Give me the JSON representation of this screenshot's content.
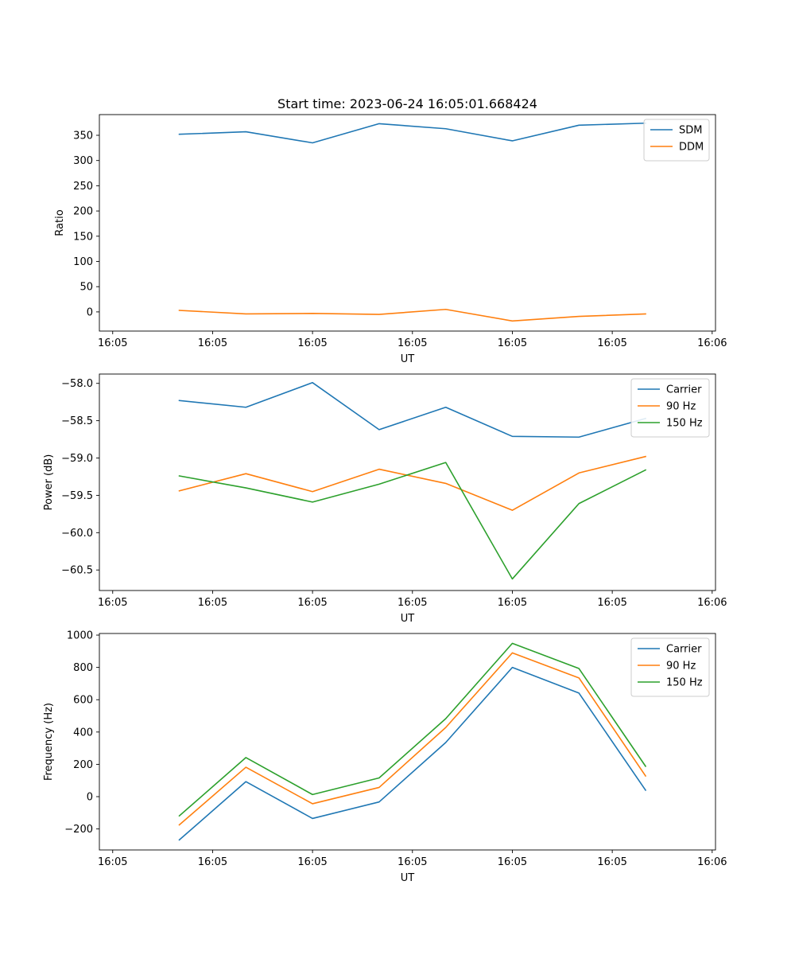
{
  "chart_data": [
    {
      "type": "line",
      "title": "Start time: 2023-06-24 16:05:01.668424",
      "xlabel": "UT",
      "ylabel": "Ratio",
      "x_tick_labels": [
        "16:05",
        "16:05",
        "16:05",
        "16:05",
        "16:05",
        "16:05",
        "16:06"
      ],
      "x_index": [
        1,
        2,
        3,
        4,
        5,
        6,
        7,
        8
      ],
      "xlim": [
        -0.2,
        9.05
      ],
      "ylim": [
        -38,
        391
      ],
      "y_ticks": [
        0,
        50,
        100,
        150,
        200,
        250,
        300,
        350
      ],
      "legend_position": "top-right",
      "grid": false,
      "series": [
        {
          "name": "SDM",
          "color": "#1f77b4",
          "values": [
            352,
            357,
            335,
            373,
            363,
            339,
            370,
            374
          ]
        },
        {
          "name": "DDM",
          "color": "#ff7f0e",
          "values": [
            3,
            -4,
            -3,
            -5,
            5,
            -18,
            -9,
            -4
          ]
        }
      ]
    },
    {
      "type": "line",
      "title": "",
      "xlabel": "UT",
      "ylabel": "Power (dB)",
      "x_tick_labels": [
        "16:05",
        "16:05",
        "16:05",
        "16:05",
        "16:05",
        "16:05",
        "16:06"
      ],
      "x_index": [
        1,
        2,
        3,
        4,
        5,
        6,
        7,
        8
      ],
      "xlim": [
        -0.2,
        9.05
      ],
      "ylim": [
        -60.775,
        -57.875
      ],
      "y_ticks": [
        -60.5,
        -60.0,
        -59.5,
        -59.0,
        -58.5,
        -58.0
      ],
      "y_tick_labels": [
        "−60.5",
        "−60.0",
        "−59.5",
        "−59.0",
        "−58.5",
        "−58.0"
      ],
      "legend_position": "top-right",
      "grid": false,
      "series": [
        {
          "name": "Carrier",
          "color": "#1f77b4",
          "values": [
            -58.23,
            -58.32,
            -57.99,
            -58.62,
            -58.32,
            -58.71,
            -58.72,
            -58.47
          ]
        },
        {
          "name": "90 Hz",
          "color": "#ff7f0e",
          "values": [
            -59.44,
            -59.21,
            -59.45,
            -59.15,
            -59.34,
            -59.7,
            -59.2,
            -58.98
          ]
        },
        {
          "name": "150 Hz",
          "color": "#2ca02c",
          "values": [
            -59.24,
            -59.4,
            -59.59,
            -59.35,
            -59.06,
            -60.62,
            -59.61,
            -59.16
          ]
        }
      ]
    },
    {
      "type": "line",
      "title": "",
      "xlabel": "UT",
      "ylabel": "Frequency (Hz)",
      "x_tick_labels": [
        "16:05",
        "16:05",
        "16:05",
        "16:05",
        "16:05",
        "16:05",
        "16:06"
      ],
      "x_index": [
        1,
        2,
        3,
        4,
        5,
        6,
        7,
        8
      ],
      "xlim": [
        -0.2,
        9.05
      ],
      "ylim": [
        -330,
        1010
      ],
      "y_ticks": [
        -200,
        0,
        200,
        400,
        600,
        800,
        1000
      ],
      "y_tick_labels": [
        "−200",
        "0",
        "200",
        "400",
        "600",
        "800",
        "1000"
      ],
      "legend_position": "top-right",
      "grid": false,
      "series": [
        {
          "name": "Carrier",
          "color": "#1f77b4",
          "values": [
            -268,
            93,
            -135,
            -33,
            335,
            800,
            641,
            40
          ]
        },
        {
          "name": "90 Hz",
          "color": "#ff7f0e",
          "values": [
            -175,
            182,
            -44,
            57,
            428,
            890,
            735,
            128
          ]
        },
        {
          "name": "150 Hz",
          "color": "#2ca02c",
          "values": [
            -119,
            242,
            13,
            116,
            483,
            949,
            793,
            188
          ]
        }
      ]
    }
  ]
}
